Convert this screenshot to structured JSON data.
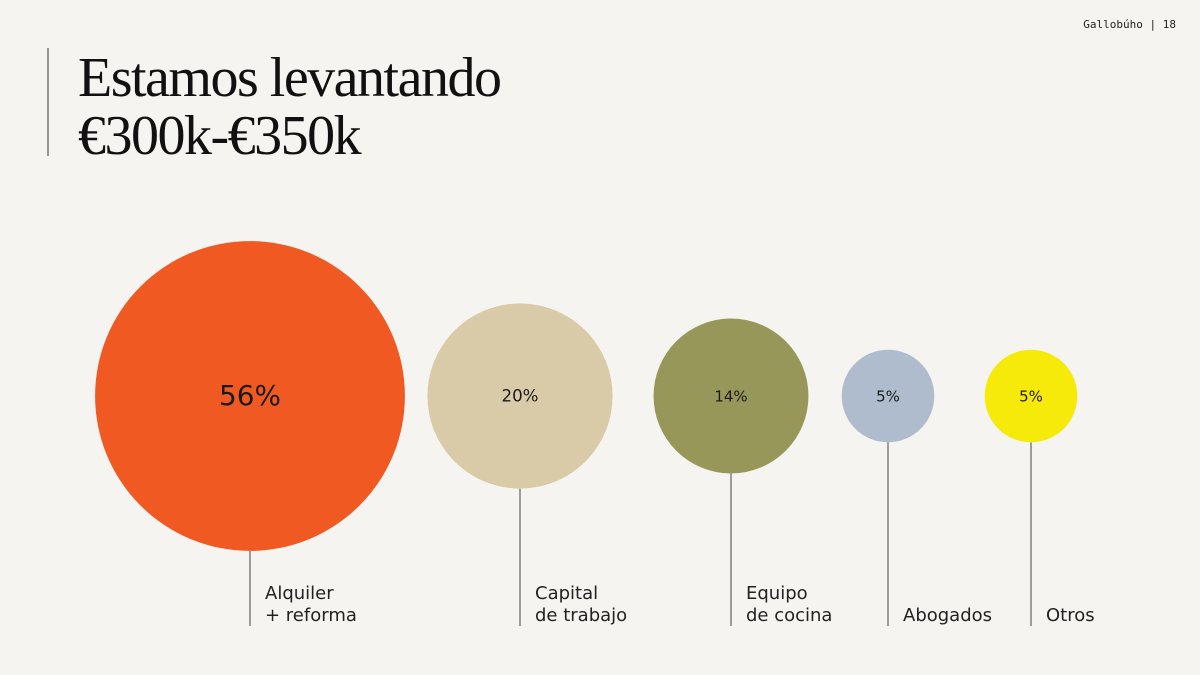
{
  "header": {
    "brand": "Gallobúho | 18"
  },
  "chart_data": {
    "type": "bubble",
    "title": [
      "Estamos levantando",
      "€300k-€350k"
    ],
    "categories": [
      [
        "Alquiler",
        "+ reforma"
      ],
      [
        "Capital",
        "de trabajo"
      ],
      [
        "Equipo",
        "de cocina"
      ],
      [
        "Abogados"
      ],
      [
        "Otros"
      ]
    ],
    "values": [
      56,
      20,
      14,
      5,
      5
    ],
    "value_labels": [
      "56%",
      "20%",
      "14%",
      "5%",
      "5%"
    ],
    "colors": [
      "#f05a22",
      "#d9cba8",
      "#979759",
      "#aebccd",
      "#f5ea0a"
    ]
  }
}
